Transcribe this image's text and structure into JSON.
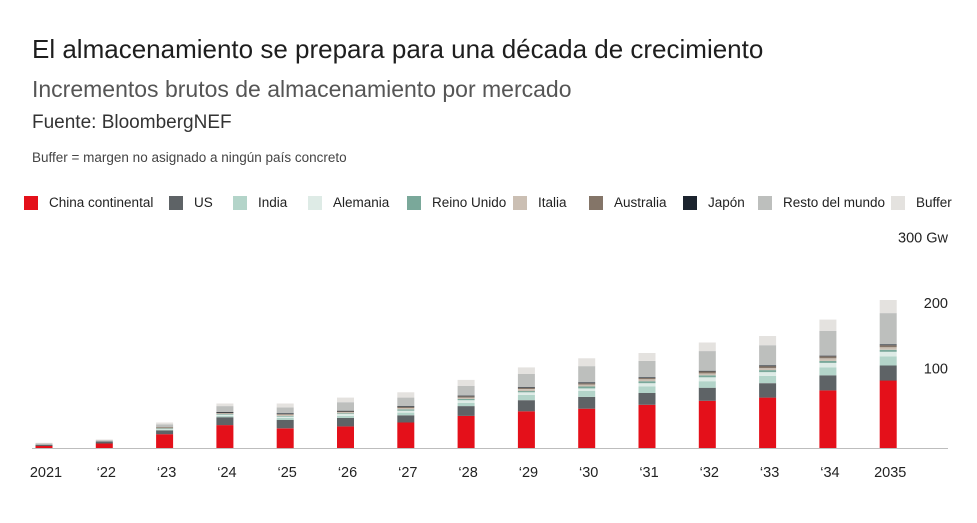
{
  "title": "El almacenamiento se prepara para una década de crecimiento",
  "subtitle": "Incrementos brutos de almacenamiento por mercado",
  "source": "Fuente: BloombergNEF",
  "note": "Buffer = margen no asignado a ningún país concreto",
  "chart_data": {
    "type": "bar",
    "stacked": true,
    "title": "El almacenamiento se prepara para una década de crecimiento",
    "subtitle": "Incrementos brutos de almacenamiento por mercado",
    "xlabel": "",
    "ylabel": "",
    "ylim": [
      0,
      300
    ],
    "y_ticks": [
      {
        "value": 100,
        "label": "100"
      },
      {
        "value": 200,
        "label": "200"
      },
      {
        "value": 300,
        "label": "300 Gw"
      }
    ],
    "gridlines": false,
    "legend_position": "top",
    "categories": [
      "2021",
      "‘22",
      "‘23",
      "‘24",
      "‘25",
      "‘26",
      "‘27",
      "‘28",
      "‘29",
      "‘30",
      "‘31",
      "‘32",
      "‘33",
      "‘34",
      "2035"
    ],
    "series": [
      {
        "name": "China continental",
        "color": "#e4101a",
        "values": [
          3,
          7,
          21,
          35,
          30,
          33,
          39,
          49,
          56,
          60,
          66,
          72,
          77,
          88,
          103
        ]
      },
      {
        "name": "US",
        "color": "#5e6366",
        "values": [
          2,
          3,
          6,
          12,
          13,
          13,
          11,
          15,
          17,
          18,
          18,
          20,
          22,
          23,
          23
        ]
      },
      {
        "name": "India",
        "color": "#b3d4c9",
        "values": [
          0,
          0,
          1,
          2,
          3,
          3,
          4,
          5,
          8,
          9,
          10,
          10,
          11,
          12,
          14
        ]
      },
      {
        "name": "Alemania",
        "color": "#deebe6",
        "values": [
          0,
          0,
          1,
          2,
          2,
          3,
          3,
          4,
          4,
          4,
          5,
          6,
          6,
          7,
          7
        ]
      },
      {
        "name": "Reino Unido",
        "color": "#7aa89a",
        "values": [
          0,
          0,
          1,
          1,
          1,
          1,
          2,
          2,
          2,
          3,
          3,
          3,
          3,
          3,
          3
        ]
      },
      {
        "name": "Italia",
        "color": "#cbbfb3",
        "values": [
          0,
          0,
          1,
          1,
          2,
          2,
          2,
          2,
          3,
          3,
          3,
          3,
          3,
          4,
          4
        ]
      },
      {
        "name": "Australia",
        "color": "#847568",
        "values": [
          0,
          0,
          1,
          1,
          1,
          1,
          2,
          2,
          2,
          2,
          2,
          3,
          3,
          3,
          3
        ]
      },
      {
        "name": "Japón",
        "color": "#1b232e",
        "values": [
          0,
          0,
          0,
          1,
          1,
          1,
          1,
          1,
          1,
          1,
          1,
          1,
          1,
          1,
          1
        ]
      },
      {
        "name": "Resto del mundo",
        "color": "#bdbfbd",
        "values": [
          2,
          2,
          4,
          9,
          9,
          13,
          13,
          15,
          20,
          25,
          25,
          30,
          31,
          38,
          48
        ]
      },
      {
        "name": "Buffer",
        "color": "#e4e2df",
        "values": [
          1,
          1,
          3,
          4,
          6,
          7,
          8,
          9,
          10,
          12,
          12,
          13,
          14,
          17,
          20
        ]
      }
    ]
  }
}
